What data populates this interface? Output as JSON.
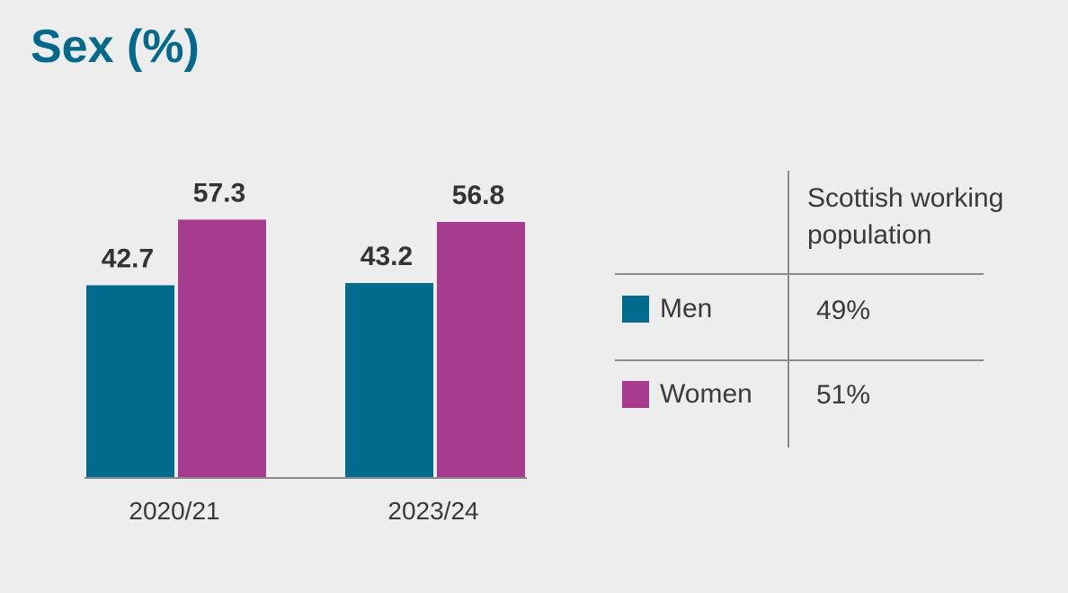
{
  "title": "Sex (%)",
  "colors": {
    "men": "#006b8c",
    "women": "#a63b8d",
    "background": "#ededed",
    "title": "#00698c"
  },
  "chart_data": {
    "type": "bar",
    "categories": [
      "2020/21",
      "2023/24"
    ],
    "series": [
      {
        "name": "Men",
        "values": [
          42.7,
          43.2
        ],
        "color": "#006b8c"
      },
      {
        "name": "Women",
        "values": [
          57.3,
          56.8
        ],
        "color": "#a63b8d"
      }
    ],
    "ylim": [
      0,
      75
    ],
    "data_labels": true,
    "grid": false
  },
  "comparison_table": {
    "header": "Scottish working population",
    "rows": [
      {
        "label": "Men",
        "value": "49%",
        "color": "#006b8c"
      },
      {
        "label": "Women",
        "value": "51%",
        "color": "#a63b8d"
      }
    ]
  }
}
